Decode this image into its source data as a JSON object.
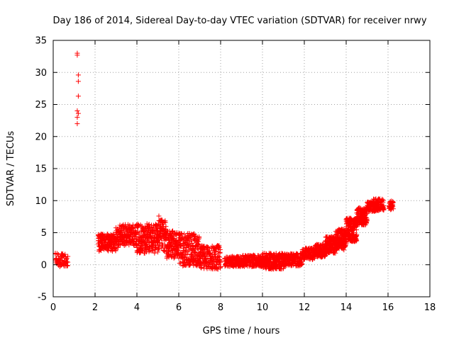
{
  "chart_data": {
    "type": "scatter",
    "title": "Day 186 of 2014, Sidereal Day-to-day VTEC variation (SDTVAR) for receiver nrwy",
    "xlabel": "GPS time / hours",
    "ylabel": "SDTVAR / TECUs",
    "xlim": [
      0,
      18
    ],
    "ylim": [
      -5,
      35
    ],
    "x_ticks": [
      0,
      2,
      4,
      6,
      8,
      10,
      12,
      14,
      16,
      18
    ],
    "y_ticks": [
      -5,
      0,
      5,
      10,
      15,
      20,
      25,
      30,
      35
    ],
    "grid": true,
    "marker": "+",
    "color": "#ff0000",
    "series": [
      {
        "name": "SDTVAR",
        "points": [
          [
            0.1,
            1.8
          ],
          [
            0.15,
            1.0
          ],
          [
            0.2,
            0.4
          ],
          [
            0.25,
            1.6
          ],
          [
            0.3,
            0.8
          ],
          [
            0.35,
            0.2
          ],
          [
            0.4,
            1.2
          ],
          [
            0.45,
            0.5
          ],
          [
            0.5,
            0.0
          ],
          [
            0.55,
            0.6
          ],
          [
            0.6,
            0.3
          ],
          [
            0.65,
            -0.2
          ],
          [
            0.7,
            0.4
          ],
          [
            1.15,
            33.0
          ],
          [
            1.15,
            32.7
          ],
          [
            1.2,
            29.6
          ],
          [
            1.2,
            28.6
          ],
          [
            1.2,
            26.3
          ],
          [
            1.15,
            24.0
          ],
          [
            1.2,
            23.6
          ],
          [
            1.15,
            23.0
          ],
          [
            1.15,
            22.0
          ],
          [
            2.15,
            4.7
          ],
          [
            2.2,
            3.5
          ],
          [
            2.3,
            2.6
          ],
          [
            2.4,
            4.2
          ],
          [
            2.5,
            3.0
          ],
          [
            2.6,
            2.3
          ],
          [
            2.7,
            3.8
          ],
          [
            2.8,
            3.1
          ],
          [
            2.9,
            4.4
          ],
          [
            3.0,
            3.6
          ],
          [
            3.1,
            2.7
          ],
          [
            3.2,
            4.0
          ],
          [
            3.3,
            4.8
          ],
          [
            3.4,
            4.2
          ],
          [
            3.5,
            5.2
          ],
          [
            3.6,
            4.5
          ],
          [
            3.7,
            5.6
          ],
          [
            3.8,
            4.6
          ],
          [
            3.9,
            5.0
          ],
          [
            4.0,
            6.1
          ],
          [
            4.1,
            4.3
          ],
          [
            4.2,
            3.6
          ],
          [
            4.3,
            4.5
          ],
          [
            4.4,
            3.2
          ],
          [
            4.5,
            4.8
          ],
          [
            4.6,
            3.6
          ],
          [
            4.7,
            2.9
          ],
          [
            4.8,
            3.8
          ],
          [
            4.9,
            6.3
          ],
          [
            5.0,
            5.2
          ],
          [
            5.05,
            7.6
          ],
          [
            5.1,
            4.4
          ],
          [
            5.2,
            3.3
          ],
          [
            5.3,
            4.8
          ],
          [
            5.4,
            2.6
          ],
          [
            5.5,
            2.0
          ],
          [
            5.6,
            3.0
          ],
          [
            5.7,
            1.6
          ],
          [
            5.8,
            3.6
          ],
          [
            5.9,
            2.4
          ],
          [
            6.0,
            4.9
          ],
          [
            6.1,
            1.1
          ],
          [
            6.2,
            3.0
          ],
          [
            6.3,
            2.0
          ],
          [
            6.4,
            0.8
          ],
          [
            6.5,
            2.6
          ],
          [
            6.6,
            1.5
          ],
          [
            6.7,
            1.0
          ],
          [
            6.8,
            2.8
          ],
          [
            6.9,
            0.4
          ],
          [
            7.0,
            1.8
          ],
          [
            7.1,
            2.6
          ],
          [
            7.2,
            1.2
          ],
          [
            7.3,
            0.5
          ],
          [
            7.4,
            2.2
          ],
          [
            7.5,
            1.0
          ],
          [
            7.6,
            2.9
          ],
          [
            7.7,
            0.6
          ],
          [
            7.8,
            -0.5
          ],
          [
            7.9,
            1.3
          ],
          [
            8.0,
            0.4
          ],
          [
            8.2,
            1.0
          ],
          [
            8.4,
            0.3
          ],
          [
            8.6,
            0.8
          ],
          [
            8.8,
            0.2
          ],
          [
            9.0,
            1.0
          ],
          [
            9.2,
            0.0
          ],
          [
            9.4,
            0.6
          ],
          [
            9.6,
            -0.2
          ],
          [
            9.8,
            0.9
          ],
          [
            10.0,
            1.6
          ],
          [
            10.1,
            0.2
          ],
          [
            10.2,
            1.1
          ],
          [
            10.3,
            -0.4
          ],
          [
            10.4,
            0.8
          ],
          [
            10.5,
            -0.6
          ],
          [
            10.6,
            0.3
          ],
          [
            10.8,
            1.2
          ],
          [
            11.0,
            0.1
          ],
          [
            11.2,
            1.0
          ],
          [
            11.4,
            0.4
          ],
          [
            11.6,
            1.3
          ],
          [
            11.8,
            0.6
          ],
          [
            12.0,
            1.8
          ],
          [
            12.2,
            2.4
          ],
          [
            12.4,
            1.6
          ],
          [
            12.6,
            2.9
          ],
          [
            12.8,
            1.2
          ],
          [
            13.0,
            3.6
          ],
          [
            13.2,
            2.0
          ],
          [
            13.4,
            4.2
          ],
          [
            13.6,
            2.6
          ],
          [
            13.8,
            4.9
          ],
          [
            14.0,
            3.3
          ],
          [
            14.1,
            6.1
          ],
          [
            14.2,
            4.5
          ],
          [
            14.3,
            5.4
          ],
          [
            14.4,
            7.0
          ],
          [
            14.5,
            6.2
          ],
          [
            14.6,
            7.6
          ],
          [
            14.7,
            8.0
          ],
          [
            14.8,
            7.2
          ],
          [
            14.9,
            8.6
          ],
          [
            15.0,
            8.8
          ],
          [
            15.1,
            9.0
          ],
          [
            15.2,
            8.6
          ],
          [
            15.35,
            10.2
          ],
          [
            15.5,
            9.5
          ],
          [
            15.6,
            8.8
          ],
          [
            15.7,
            9.8
          ],
          [
            15.8,
            9.2
          ],
          [
            16.1,
            9.6
          ],
          [
            16.15,
            9.0
          ]
        ],
        "bands": [
          [
            0.1,
            0.7,
            -0.4,
            1.8,
            50
          ],
          [
            2.15,
            3.0,
            2.1,
            4.8,
            160
          ],
          [
            3.0,
            4.0,
            3.0,
            6.3,
            170
          ],
          [
            4.0,
            5.0,
            1.8,
            6.4,
            200
          ],
          [
            5.0,
            5.4,
            2.0,
            7.0,
            90
          ],
          [
            5.4,
            6.0,
            1.0,
            5.3,
            120
          ],
          [
            6.0,
            7.0,
            -0.2,
            4.9,
            200
          ],
          [
            7.0,
            8.0,
            -0.7,
            3.0,
            170
          ],
          [
            8.2,
            9.0,
            -0.3,
            1.3,
            130
          ],
          [
            9.0,
            10.0,
            -0.3,
            1.5,
            160
          ],
          [
            10.0,
            11.0,
            -0.7,
            1.8,
            200
          ],
          [
            11.0,
            11.9,
            -0.2,
            1.8,
            160
          ],
          [
            11.9,
            12.5,
            0.8,
            2.6,
            90
          ],
          [
            12.5,
            13.0,
            1.2,
            3.2,
            110
          ],
          [
            13.0,
            13.5,
            1.8,
            4.4,
            140
          ],
          [
            13.5,
            14.0,
            2.3,
            5.6,
            160
          ],
          [
            14.0,
            14.5,
            3.6,
            7.3,
            170
          ],
          [
            14.5,
            15.0,
            6.2,
            8.9,
            130
          ],
          [
            15.0,
            15.5,
            8.3,
            9.8,
            90
          ],
          [
            15.3,
            15.8,
            8.4,
            10.3,
            70
          ],
          [
            16.05,
            16.25,
            8.6,
            10.0,
            30
          ]
        ]
      }
    ]
  }
}
